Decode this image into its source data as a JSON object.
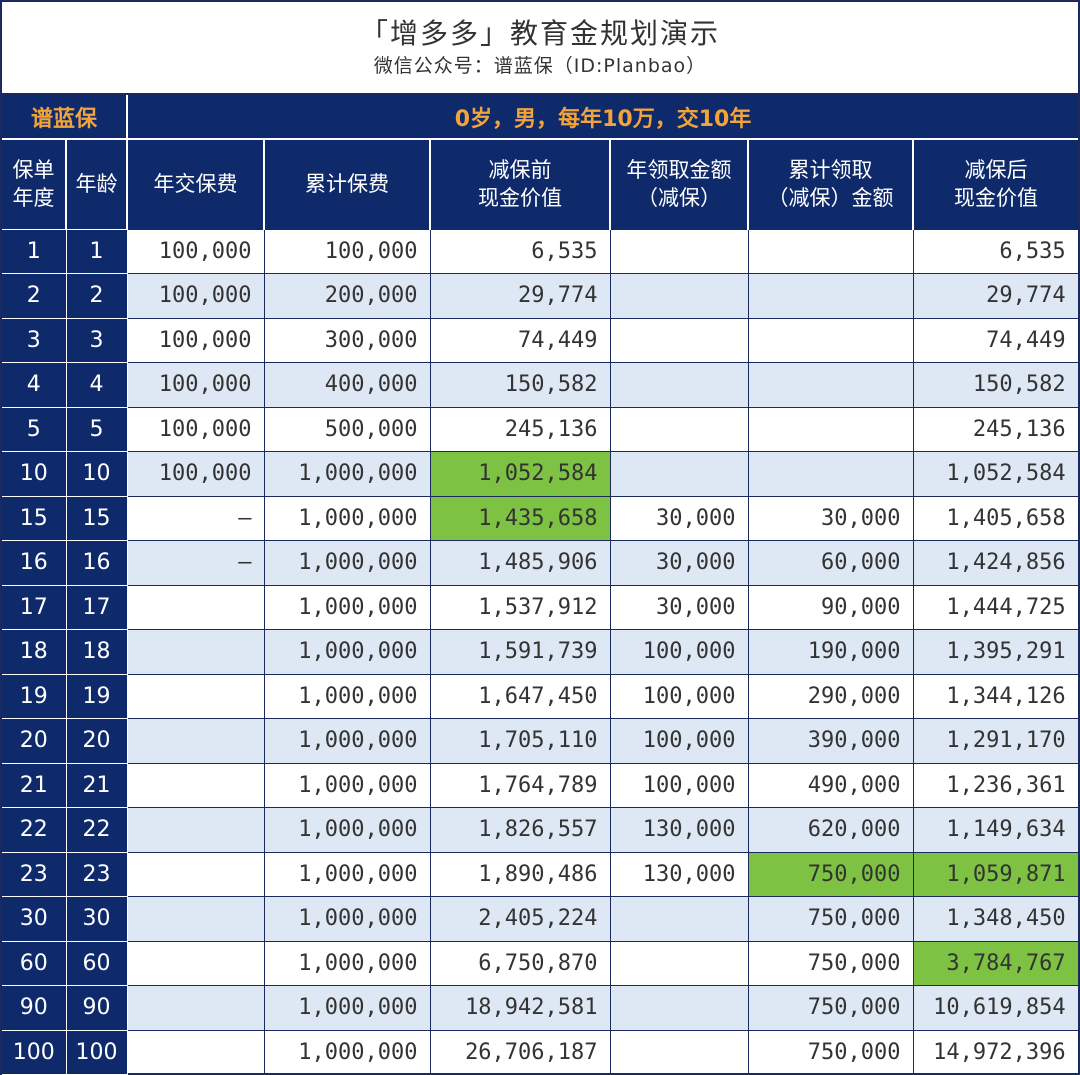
{
  "header": {
    "title": "「增多多」教育金规划演示",
    "subtitle": "微信公众号：谱蓝保（ID:Planbao）"
  },
  "brand": "谱蓝保",
  "scenario": "0岁，男，每年10万，交10年",
  "columns": [
    [
      "保单",
      "年度"
    ],
    [
      "年龄"
    ],
    [
      "年交保费"
    ],
    [
      "累计保费"
    ],
    [
      "减保前",
      "现金价值"
    ],
    [
      "年领取金额",
      "（减保）"
    ],
    [
      "累计领取",
      "（减保）金额"
    ],
    [
      "减保后",
      "现金价值"
    ]
  ],
  "rows": [
    {
      "year": "1",
      "age": "1",
      "annual": "100,000",
      "cumulative": "100,000",
      "cv_before": "6,535",
      "withdraw": "",
      "cum_withdraw": "",
      "cv_after": "6,535"
    },
    {
      "year": "2",
      "age": "2",
      "annual": "100,000",
      "cumulative": "200,000",
      "cv_before": "29,774",
      "withdraw": "",
      "cum_withdraw": "",
      "cv_after": "29,774"
    },
    {
      "year": "3",
      "age": "3",
      "annual": "100,000",
      "cumulative": "300,000",
      "cv_before": "74,449",
      "withdraw": "",
      "cum_withdraw": "",
      "cv_after": "74,449"
    },
    {
      "year": "4",
      "age": "4",
      "annual": "100,000",
      "cumulative": "400,000",
      "cv_before": "150,582",
      "withdraw": "",
      "cum_withdraw": "",
      "cv_after": "150,582"
    },
    {
      "year": "5",
      "age": "5",
      "annual": "100,000",
      "cumulative": "500,000",
      "cv_before": "245,136",
      "withdraw": "",
      "cum_withdraw": "",
      "cv_after": "245,136"
    },
    {
      "year": "10",
      "age": "10",
      "annual": "100,000",
      "cumulative": "1,000,000",
      "cv_before": "1,052,584",
      "withdraw": "",
      "cum_withdraw": "",
      "cv_after": "1,052,584"
    },
    {
      "year": "15",
      "age": "15",
      "annual": "–",
      "cumulative": "1,000,000",
      "cv_before": "1,435,658",
      "withdraw": "30,000",
      "cum_withdraw": "30,000",
      "cv_after": "1,405,658"
    },
    {
      "year": "16",
      "age": "16",
      "annual": "–",
      "cumulative": "1,000,000",
      "cv_before": "1,485,906",
      "withdraw": "30,000",
      "cum_withdraw": "60,000",
      "cv_after": "1,424,856"
    },
    {
      "year": "17",
      "age": "17",
      "annual": "",
      "cumulative": "1,000,000",
      "cv_before": "1,537,912",
      "withdraw": "30,000",
      "cum_withdraw": "90,000",
      "cv_after": "1,444,725"
    },
    {
      "year": "18",
      "age": "18",
      "annual": "",
      "cumulative": "1,000,000",
      "cv_before": "1,591,739",
      "withdraw": "100,000",
      "cum_withdraw": "190,000",
      "cv_after": "1,395,291"
    },
    {
      "year": "19",
      "age": "19",
      "annual": "",
      "cumulative": "1,000,000",
      "cv_before": "1,647,450",
      "withdraw": "100,000",
      "cum_withdraw": "290,000",
      "cv_after": "1,344,126"
    },
    {
      "year": "20",
      "age": "20",
      "annual": "",
      "cumulative": "1,000,000",
      "cv_before": "1,705,110",
      "withdraw": "100,000",
      "cum_withdraw": "390,000",
      "cv_after": "1,291,170"
    },
    {
      "year": "21",
      "age": "21",
      "annual": "",
      "cumulative": "1,000,000",
      "cv_before": "1,764,789",
      "withdraw": "100,000",
      "cum_withdraw": "490,000",
      "cv_after": "1,236,361"
    },
    {
      "year": "22",
      "age": "22",
      "annual": "",
      "cumulative": "1,000,000",
      "cv_before": "1,826,557",
      "withdraw": "130,000",
      "cum_withdraw": "620,000",
      "cv_after": "1,149,634"
    },
    {
      "year": "23",
      "age": "23",
      "annual": "",
      "cumulative": "1,000,000",
      "cv_before": "1,890,486",
      "withdraw": "130,000",
      "cum_withdraw": "750,000",
      "cv_after": "1,059,871"
    },
    {
      "year": "30",
      "age": "30",
      "annual": "",
      "cumulative": "1,000,000",
      "cv_before": "2,405,224",
      "withdraw": "",
      "cum_withdraw": "750,000",
      "cv_after": "1,348,450"
    },
    {
      "year": "60",
      "age": "60",
      "annual": "",
      "cumulative": "1,000,000",
      "cv_before": "6,750,870",
      "withdraw": "",
      "cum_withdraw": "750,000",
      "cv_after": "3,784,767"
    },
    {
      "year": "90",
      "age": "90",
      "annual": "",
      "cumulative": "1,000,000",
      "cv_before": "18,942,581",
      "withdraw": "",
      "cum_withdraw": "750,000",
      "cv_after": "10,619,854"
    },
    {
      "year": "100",
      "age": "100",
      "annual": "",
      "cumulative": "1,000,000",
      "cv_before": "26,706,187",
      "withdraw": "",
      "cum_withdraw": "750,000",
      "cv_after": "14,972,396"
    }
  ],
  "highlights": [
    {
      "row": 5,
      "col": "cv_before"
    },
    {
      "row": 6,
      "col": "cv_before"
    },
    {
      "row": 14,
      "col": "cum_withdraw"
    },
    {
      "row": 14,
      "col": "cv_after"
    },
    {
      "row": 16,
      "col": "cv_after"
    }
  ],
  "colors": {
    "navy": "#0f2a6b",
    "brand_orange": "#f2a33a",
    "row_alt": "#dde8f4",
    "highlight_green": "#7dc242"
  }
}
